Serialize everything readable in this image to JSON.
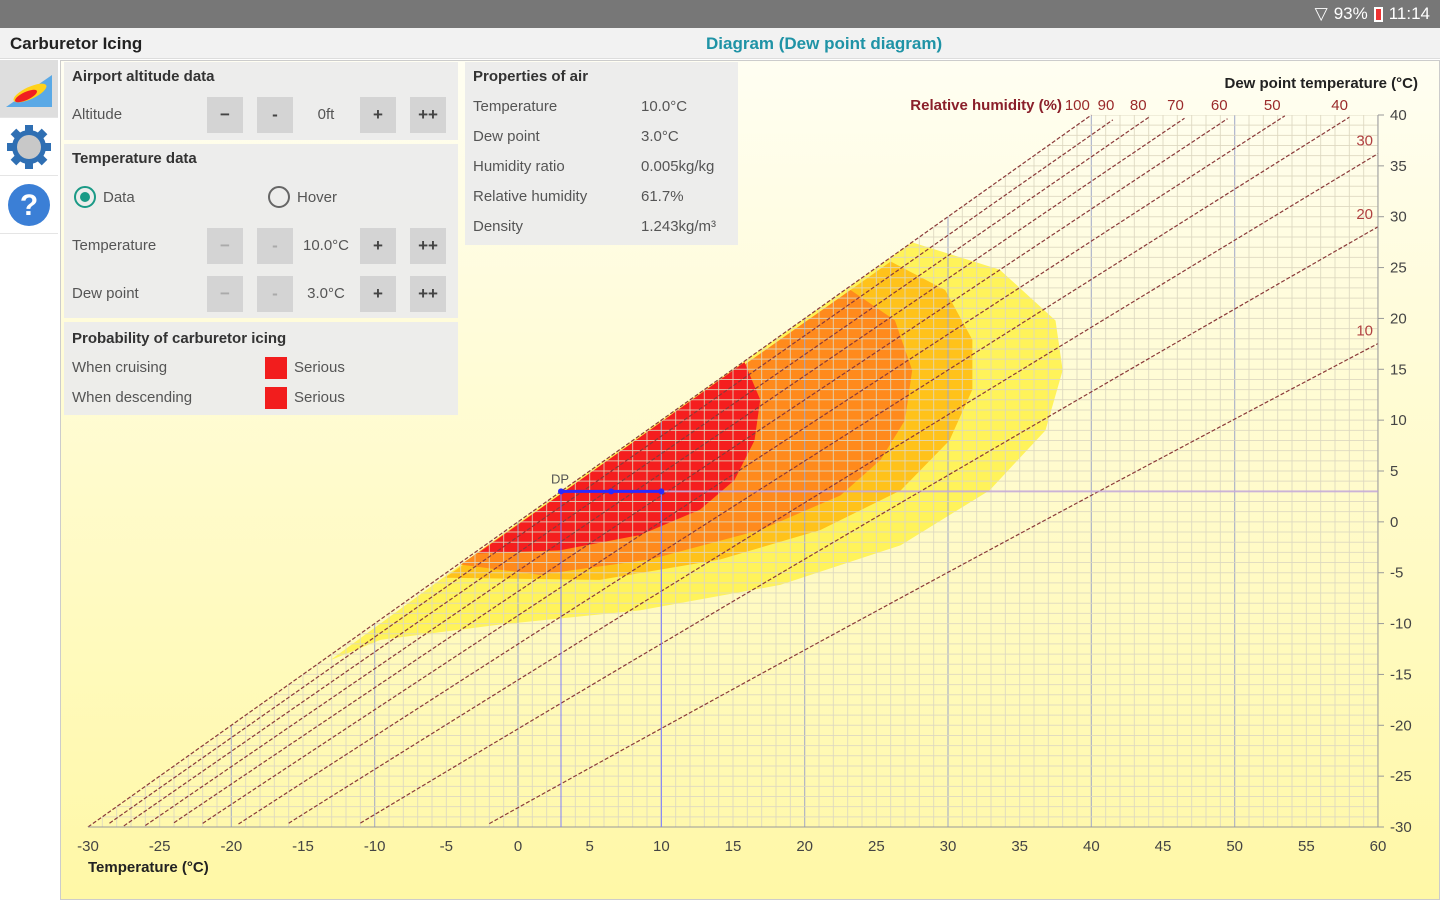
{
  "status_bar": {
    "battery": "93%",
    "time": "11:14"
  },
  "header": {
    "app_title": "Carburetor Icing",
    "view_title": "Diagram (Dew point diagram)"
  },
  "nav": [
    {
      "name": "diagram",
      "icon": "chart-icon"
    },
    {
      "name": "settings",
      "icon": "gear-icon"
    },
    {
      "name": "help",
      "icon": "help-icon"
    }
  ],
  "altitude": {
    "title": "Airport altitude data",
    "label": "Altitude",
    "value": "0ft",
    "buttons": [
      "−",
      "-",
      "+",
      "++"
    ]
  },
  "temperature_data": {
    "title": "Temperature data",
    "radio_data": "Data",
    "radio_hover": "Hover",
    "selected": "Data",
    "temperature_label": "Temperature",
    "temperature_value": "10.0°C",
    "dewpoint_label": "Dew point",
    "dewpoint_value": "3.0°C",
    "buttons": [
      "−",
      "-",
      "+",
      "++"
    ]
  },
  "probability": {
    "title": "Probability of carburetor icing",
    "cruising_label": "When cruising",
    "cruising_value": "Serious",
    "descending_label": "When descending",
    "descending_value": "Serious",
    "color": "#f21d1d"
  },
  "properties": {
    "title": "Properties of air",
    "rows": [
      {
        "label": "Temperature",
        "value": "10.0°C"
      },
      {
        "label": "Dew point",
        "value": "3.0°C"
      },
      {
        "label": "Humidity ratio",
        "value": "0.005kg/kg"
      },
      {
        "label": "Relative humidity",
        "value": "61.7%"
      },
      {
        "label": "Density",
        "value": "1.243kg/m³"
      }
    ]
  },
  "chart_data": {
    "type": "scatter",
    "xlabel": "Temperature (°C)",
    "ylabel": "Dew point temperature (°C)",
    "rh_label": "Relative humidity (%)",
    "xlim": [
      -30,
      60
    ],
    "ylim": [
      -30,
      40
    ],
    "x_ticks": [
      "-30",
      "-25",
      "-20",
      "-15",
      "-10",
      "-5",
      "0",
      "5",
      "10",
      "15",
      "20",
      "25",
      "30",
      "35",
      "40",
      "45",
      "50",
      "55",
      "60"
    ],
    "y_ticks": [
      "40",
      "35",
      "30",
      "25",
      "20",
      "15",
      "10",
      "5",
      "0",
      "-5",
      "-10",
      "-15",
      "-20",
      "-25",
      "-30"
    ],
    "rh_lines": [
      100,
      90,
      80,
      70,
      60,
      50,
      40,
      30,
      20,
      10
    ],
    "rh_top_labels": [
      "100",
      "90",
      "80",
      "70",
      "60",
      "50",
      "40"
    ],
    "rh_right_labels": [
      "30",
      "20",
      "10"
    ],
    "point": {
      "label": "DP",
      "temperature": 10,
      "dewpoint": 3
    },
    "zones": [
      {
        "name": "light",
        "color": "#fff35a",
        "points": [
          [
            -13.1,
            -13.6
          ],
          [
            27,
            27.7
          ],
          [
            33.6,
            24.8
          ],
          [
            37.5,
            19.8
          ],
          [
            38,
            14.9
          ],
          [
            36.8,
            9
          ],
          [
            32.9,
            3.1
          ],
          [
            26.7,
            -2.3
          ],
          [
            18.3,
            -6.2
          ],
          [
            8.5,
            -8.7
          ],
          [
            -1.3,
            -10.1
          ],
          [
            -9.6,
            -11.6
          ]
        ]
      },
      {
        "name": "moderate",
        "color": "#ffc21a",
        "points": [
          [
            -5.1,
            -5.5
          ],
          [
            26,
            25.6
          ],
          [
            29.8,
            22.8
          ],
          [
            31.7,
            17.9
          ],
          [
            31.7,
            13
          ],
          [
            30.1,
            8
          ],
          [
            26.7,
            3.1
          ],
          [
            21.1,
            -0.8
          ],
          [
            14.1,
            -3.7
          ],
          [
            5.7,
            -5.7
          ]
        ]
      },
      {
        "name": "serious-cruise",
        "color": "#ff8a1c",
        "points": [
          [
            -4,
            -4.2
          ],
          [
            23.2,
            22.8
          ],
          [
            26.3,
            19.8
          ],
          [
            27.5,
            14.9
          ],
          [
            27,
            10
          ],
          [
            25.3,
            6.1
          ],
          [
            22.5,
            2.6
          ],
          [
            16.9,
            -0.8
          ],
          [
            9.2,
            -3.7
          ],
          [
            1.5,
            -5.2
          ]
        ]
      },
      {
        "name": "serious",
        "color": "#f51e1e",
        "points": [
          [
            -2.8,
            -3.1
          ],
          [
            15.8,
            15.7
          ],
          [
            16.9,
            12
          ],
          [
            16.5,
            8
          ],
          [
            15.1,
            4.1
          ],
          [
            12.7,
            1.2
          ],
          [
            8.5,
            -1.3
          ],
          [
            2.9,
            -2.8
          ]
        ]
      }
    ]
  }
}
